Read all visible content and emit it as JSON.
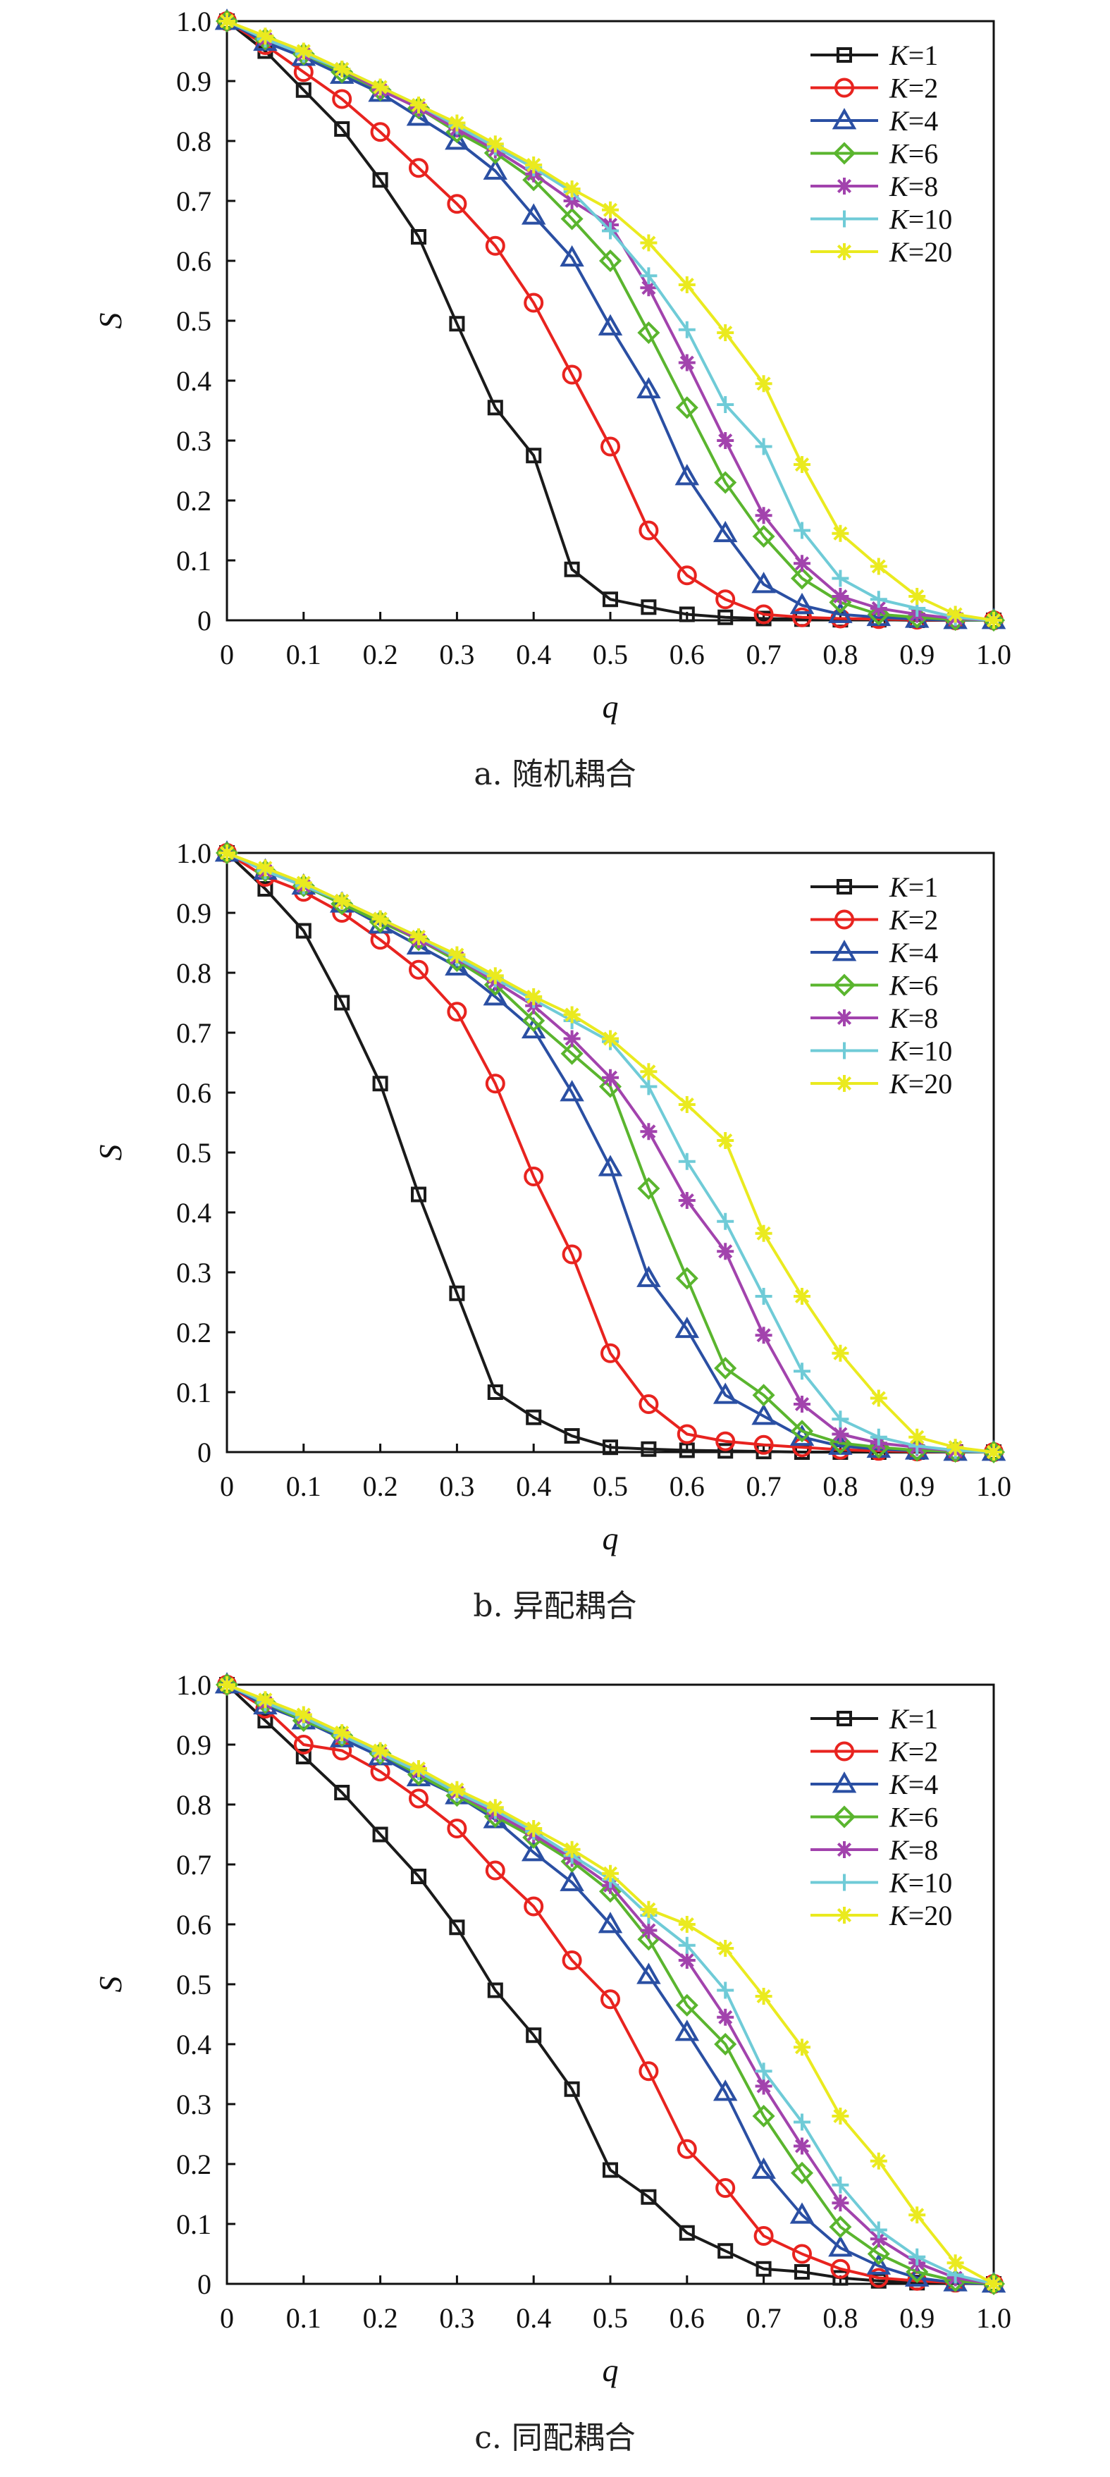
{
  "charts": [
    {
      "caption": "a. 随机耦合",
      "chart_data": {
        "type": "line",
        "xlabel": "q",
        "ylabel": "S",
        "xlim": [
          0,
          1.0
        ],
        "ylim": [
          0,
          1.0
        ],
        "x_ticks": [
          "0",
          "0.1",
          "0.2",
          "0.3",
          "0.4",
          "0.5",
          "0.6",
          "0.7",
          "0.8",
          "0.9",
          "1.0"
        ],
        "y_ticks": [
          "0",
          "0.1",
          "0.2",
          "0.3",
          "0.4",
          "0.5",
          "0.6",
          "0.7",
          "0.8",
          "0.9",
          "1.0"
        ],
        "legend_position": "top-right",
        "grid": false,
        "x": [
          0,
          0.05,
          0.1,
          0.15,
          0.2,
          0.25,
          0.3,
          0.35,
          0.4,
          0.45,
          0.5,
          0.55,
          0.6,
          0.65,
          0.7,
          0.75,
          0.8,
          0.85,
          0.9,
          0.95,
          1.0
        ],
        "series": [
          {
            "name": "K=1",
            "k": "1",
            "color": "#1a1a1a",
            "marker": "square",
            "values": [
              1.0,
              0.95,
              0.885,
              0.82,
              0.735,
              0.64,
              0.495,
              0.355,
              0.275,
              0.085,
              0.035,
              0.022,
              0.01,
              0.005,
              0.003,
              0.002,
              0.001,
              0.001,
              0.0,
              0.0,
              0.0
            ]
          },
          {
            "name": "K=2",
            "k": "2",
            "color": "#e8231f",
            "marker": "circle",
            "values": [
              1.0,
              0.96,
              0.915,
              0.87,
              0.815,
              0.755,
              0.695,
              0.625,
              0.53,
              0.41,
              0.29,
              0.15,
              0.075,
              0.035,
              0.01,
              0.005,
              0.003,
              0.002,
              0.001,
              0.0,
              0.0
            ]
          },
          {
            "name": "K=4",
            "k": "4",
            "color": "#2a4fa3",
            "marker": "triangle",
            "values": [
              1.0,
              0.965,
              0.94,
              0.91,
              0.88,
              0.84,
              0.8,
              0.75,
              0.675,
              0.605,
              0.49,
              0.385,
              0.24,
              0.145,
              0.06,
              0.025,
              0.01,
              0.005,
              0.002,
              0.0,
              0.0
            ]
          },
          {
            "name": "K=6",
            "k": "6",
            "color": "#5ab52e",
            "marker": "diamond",
            "values": [
              1.0,
              0.97,
              0.945,
              0.915,
              0.885,
              0.855,
              0.815,
              0.78,
              0.735,
              0.67,
              0.6,
              0.48,
              0.355,
              0.23,
              0.14,
              0.07,
              0.03,
              0.01,
              0.005,
              0.001,
              0.0
            ]
          },
          {
            "name": "K=8",
            "k": "8",
            "color": "#a243ad",
            "marker": "star",
            "values": [
              1.0,
              0.97,
              0.945,
              0.92,
              0.885,
              0.855,
              0.82,
              0.785,
              0.745,
              0.7,
              0.66,
              0.555,
              0.43,
              0.3,
              0.175,
              0.095,
              0.04,
              0.02,
              0.01,
              0.003,
              0.0
            ]
          },
          {
            "name": "K=10",
            "k": "10",
            "color": "#6fcbd7",
            "marker": "plus",
            "values": [
              1.0,
              0.97,
              0.945,
              0.92,
              0.89,
              0.86,
              0.825,
              0.79,
              0.755,
              0.715,
              0.65,
              0.575,
              0.485,
              0.36,
              0.29,
              0.15,
              0.07,
              0.035,
              0.02,
              0.005,
              0.0
            ]
          },
          {
            "name": "K=20",
            "k": "20",
            "color": "#eaea1f",
            "marker": "star",
            "values": [
              1.0,
              0.975,
              0.95,
              0.92,
              0.89,
              0.86,
              0.83,
              0.795,
              0.76,
              0.72,
              0.685,
              0.63,
              0.56,
              0.48,
              0.395,
              0.26,
              0.145,
              0.09,
              0.04,
              0.01,
              0.0
            ]
          }
        ]
      }
    },
    {
      "caption": "b. 异配耦合",
      "chart_data": {
        "type": "line",
        "xlabel": "q",
        "ylabel": "S",
        "xlim": [
          0,
          1.0
        ],
        "ylim": [
          0,
          1.0
        ],
        "x_ticks": [
          "0",
          "0.1",
          "0.2",
          "0.3",
          "0.4",
          "0.5",
          "0.6",
          "0.7",
          "0.8",
          "0.9",
          "1.0"
        ],
        "y_ticks": [
          "0",
          "0.1",
          "0.2",
          "0.3",
          "0.4",
          "0.5",
          "0.6",
          "0.7",
          "0.8",
          "0.9",
          "1.0"
        ],
        "legend_position": "top-right",
        "grid": false,
        "x": [
          0,
          0.05,
          0.1,
          0.15,
          0.2,
          0.25,
          0.3,
          0.35,
          0.4,
          0.45,
          0.5,
          0.55,
          0.6,
          0.65,
          0.7,
          0.75,
          0.8,
          0.85,
          0.9,
          0.95,
          1.0
        ],
        "series": [
          {
            "name": "K=1",
            "k": "1",
            "color": "#1a1a1a",
            "marker": "square",
            "values": [
              1.0,
              0.94,
              0.87,
              0.75,
              0.615,
              0.43,
              0.265,
              0.1,
              0.058,
              0.027,
              0.008,
              0.005,
              0.003,
              0.002,
              0.001,
              0.0,
              0.0,
              0.0,
              0.0,
              0.0,
              0.0
            ]
          },
          {
            "name": "K=2",
            "k": "2",
            "color": "#e8231f",
            "marker": "circle",
            "values": [
              1.0,
              0.96,
              0.935,
              0.9,
              0.855,
              0.805,
              0.735,
              0.615,
              0.46,
              0.33,
              0.165,
              0.08,
              0.03,
              0.018,
              0.012,
              0.008,
              0.004,
              0.002,
              0.001,
              0.0,
              0.0
            ]
          },
          {
            "name": "K=4",
            "k": "4",
            "color": "#2a4fa3",
            "marker": "triangle",
            "values": [
              1.0,
              0.97,
              0.945,
              0.915,
              0.88,
              0.845,
              0.81,
              0.76,
              0.705,
              0.6,
              0.475,
              0.29,
              0.205,
              0.095,
              0.06,
              0.025,
              0.01,
              0.005,
              0.002,
              0.0,
              0.0
            ]
          },
          {
            "name": "K=6",
            "k": "6",
            "color": "#5ab52e",
            "marker": "diamond",
            "values": [
              1.0,
              0.97,
              0.945,
              0.915,
              0.885,
              0.855,
              0.82,
              0.78,
              0.72,
              0.665,
              0.61,
              0.44,
              0.29,
              0.14,
              0.095,
              0.035,
              0.015,
              0.008,
              0.003,
              0.001,
              0.0
            ]
          },
          {
            "name": "K=8",
            "k": "8",
            "color": "#a243ad",
            "marker": "star",
            "values": [
              1.0,
              0.97,
              0.945,
              0.92,
              0.89,
              0.855,
              0.825,
              0.785,
              0.745,
              0.69,
              0.625,
              0.535,
              0.42,
              0.335,
              0.195,
              0.08,
              0.03,
              0.015,
              0.008,
              0.002,
              0.0
            ]
          },
          {
            "name": "K=10",
            "k": "10",
            "color": "#6fcbd7",
            "marker": "plus",
            "values": [
              1.0,
              0.97,
              0.945,
              0.92,
              0.89,
              0.86,
              0.825,
              0.79,
              0.755,
              0.72,
              0.685,
              0.61,
              0.485,
              0.385,
              0.26,
              0.135,
              0.055,
              0.025,
              0.01,
              0.003,
              0.0
            ]
          },
          {
            "name": "K=20",
            "k": "20",
            "color": "#eaea1f",
            "marker": "star",
            "values": [
              1.0,
              0.975,
              0.95,
              0.92,
              0.89,
              0.86,
              0.83,
              0.795,
              0.76,
              0.73,
              0.69,
              0.635,
              0.58,
              0.52,
              0.365,
              0.26,
              0.165,
              0.09,
              0.025,
              0.008,
              0.0
            ]
          }
        ]
      }
    },
    {
      "caption": "c. 同配耦合",
      "chart_data": {
        "type": "line",
        "xlabel": "q",
        "ylabel": "S",
        "xlim": [
          0,
          1.0
        ],
        "ylim": [
          0,
          1.0
        ],
        "x_ticks": [
          "0",
          "0.1",
          "0.2",
          "0.3",
          "0.4",
          "0.5",
          "0.6",
          "0.7",
          "0.8",
          "0.9",
          "1.0"
        ],
        "y_ticks": [
          "0",
          "0.1",
          "0.2",
          "0.3",
          "0.4",
          "0.5",
          "0.6",
          "0.7",
          "0.8",
          "0.9",
          "1.0"
        ],
        "legend_position": "top-right",
        "grid": false,
        "x": [
          0,
          0.05,
          0.1,
          0.15,
          0.2,
          0.25,
          0.3,
          0.35,
          0.4,
          0.45,
          0.5,
          0.55,
          0.6,
          0.65,
          0.7,
          0.75,
          0.8,
          0.85,
          0.9,
          0.95,
          1.0
        ],
        "series": [
          {
            "name": "K=1",
            "k": "1",
            "color": "#1a1a1a",
            "marker": "square",
            "values": [
              1.0,
              0.94,
              0.88,
              0.82,
              0.75,
              0.68,
              0.595,
              0.49,
              0.415,
              0.325,
              0.19,
              0.145,
              0.085,
              0.055,
              0.025,
              0.02,
              0.01,
              0.005,
              0.002,
              0.001,
              0.0
            ]
          },
          {
            "name": "K=2",
            "k": "2",
            "color": "#e8231f",
            "marker": "circle",
            "values": [
              1.0,
              0.96,
              0.9,
              0.89,
              0.855,
              0.81,
              0.76,
              0.69,
              0.63,
              0.54,
              0.475,
              0.355,
              0.225,
              0.16,
              0.08,
              0.05,
              0.025,
              0.01,
              0.005,
              0.002,
              0.0
            ]
          },
          {
            "name": "K=4",
            "k": "4",
            "color": "#2a4fa3",
            "marker": "triangle",
            "values": [
              1.0,
              0.965,
              0.94,
              0.91,
              0.88,
              0.845,
              0.815,
              0.775,
              0.72,
              0.67,
              0.6,
              0.515,
              0.42,
              0.32,
              0.19,
              0.115,
              0.06,
              0.03,
              0.01,
              0.002,
              0.0
            ]
          },
          {
            "name": "K=6",
            "k": "6",
            "color": "#5ab52e",
            "marker": "diamond",
            "values": [
              1.0,
              0.97,
              0.94,
              0.915,
              0.885,
              0.85,
              0.815,
              0.78,
              0.745,
              0.705,
              0.655,
              0.575,
              0.465,
              0.4,
              0.28,
              0.185,
              0.095,
              0.05,
              0.02,
              0.005,
              0.0
            ]
          },
          {
            "name": "K=8",
            "k": "8",
            "color": "#a243ad",
            "marker": "star",
            "values": [
              1.0,
              0.97,
              0.945,
              0.915,
              0.885,
              0.855,
              0.82,
              0.785,
              0.75,
              0.71,
              0.665,
              0.59,
              0.54,
              0.445,
              0.33,
              0.23,
              0.135,
              0.075,
              0.035,
              0.01,
              0.0
            ]
          },
          {
            "name": "K=10",
            "k": "10",
            "color": "#6fcbd7",
            "marker": "plus",
            "values": [
              1.0,
              0.97,
              0.945,
              0.915,
              0.885,
              0.855,
              0.82,
              0.79,
              0.755,
              0.715,
              0.675,
              0.615,
              0.565,
              0.49,
              0.355,
              0.27,
              0.165,
              0.09,
              0.045,
              0.015,
              0.0
            ]
          },
          {
            "name": "K=20",
            "k": "20",
            "color": "#eaea1f",
            "marker": "star",
            "values": [
              1.0,
              0.975,
              0.95,
              0.92,
              0.89,
              0.86,
              0.825,
              0.795,
              0.76,
              0.725,
              0.685,
              0.625,
              0.6,
              0.56,
              0.48,
              0.395,
              0.28,
              0.205,
              0.115,
              0.035,
              0.0
            ]
          }
        ]
      }
    }
  ]
}
